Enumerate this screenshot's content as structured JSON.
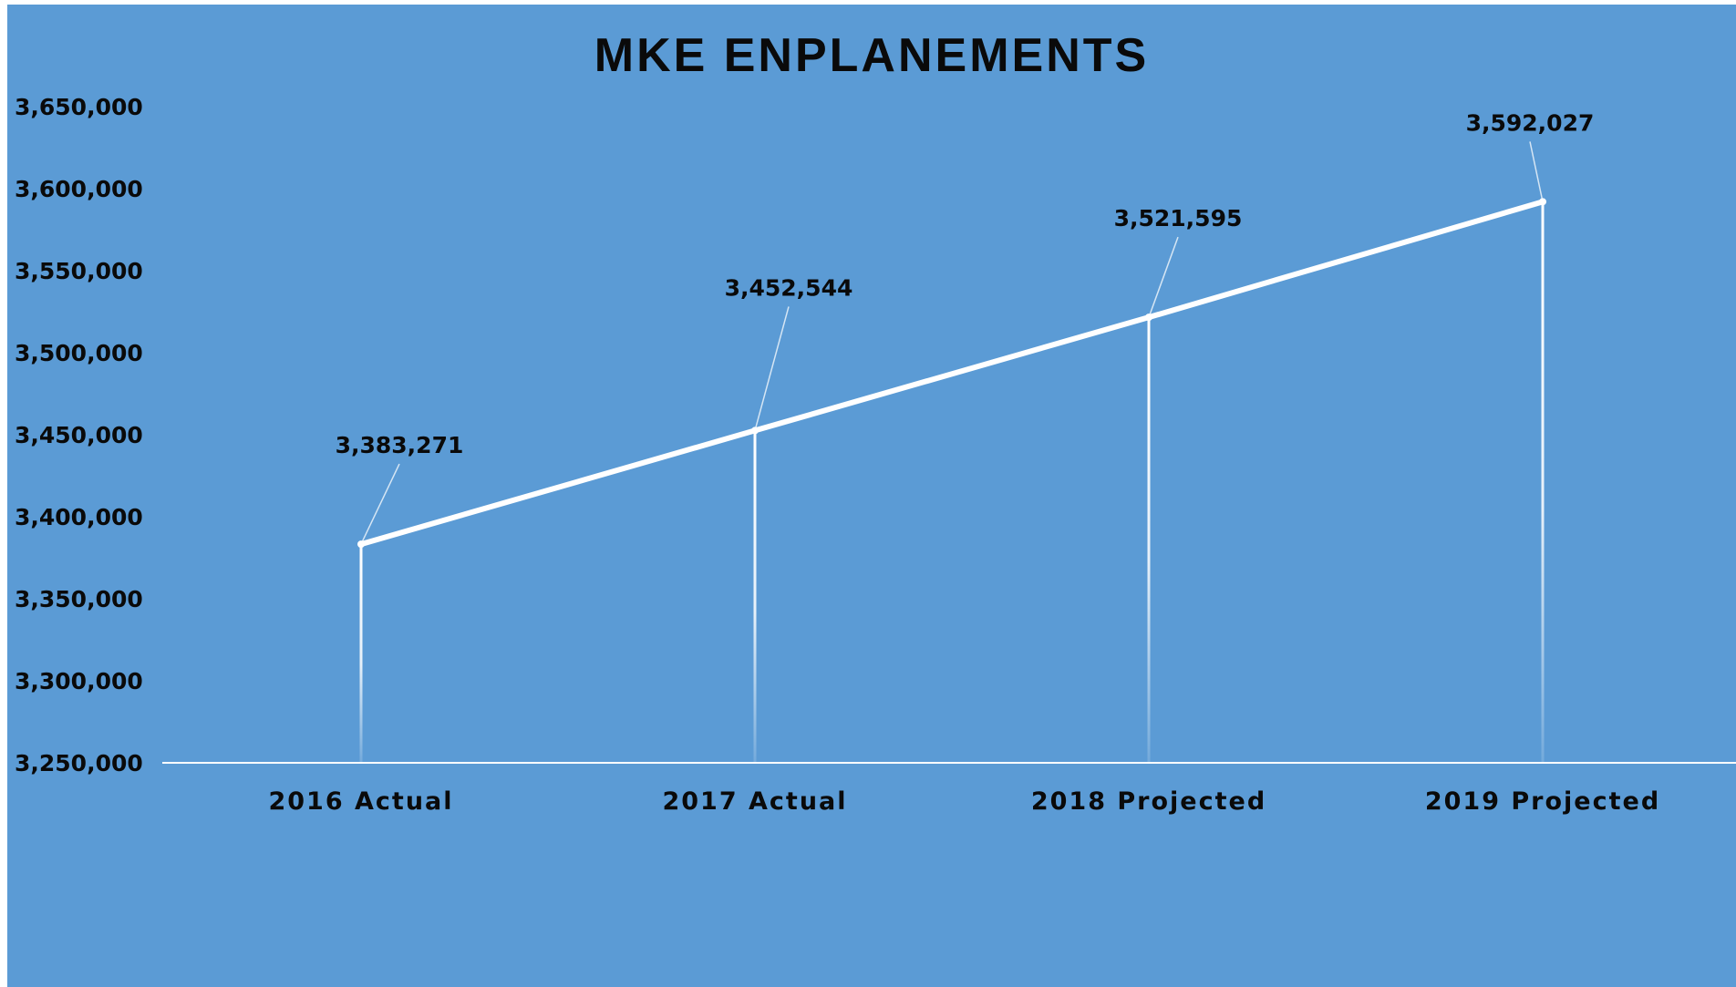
{
  "chart_data": {
    "type": "line",
    "title": "MKE ENPLANEMENTS",
    "categories": [
      "2016 Actual",
      "2017 Actual",
      "2018 Projected",
      "2019 Projected"
    ],
    "series": [
      {
        "values": [
          3383271,
          3452544,
          3521595,
          3592027
        ]
      }
    ],
    "data_labels": [
      "3,383,271",
      "3,452,544",
      "3,521,595",
      "3,592,027"
    ],
    "y_ticks": [
      "3,250,000",
      "3,300,000",
      "3,350,000",
      "3,400,000",
      "3,450,000",
      "3,500,000",
      "3,550,000",
      "3,600,000",
      "3,650,000"
    ],
    "ylim": [
      3250000,
      3650000
    ],
    "xlabel": "",
    "ylabel": "",
    "drop_lines": true,
    "grid": false,
    "legend": "none",
    "colors": {
      "background": "#5b9bd5",
      "line": "#ffffff",
      "text": "#0a0a0a"
    }
  }
}
